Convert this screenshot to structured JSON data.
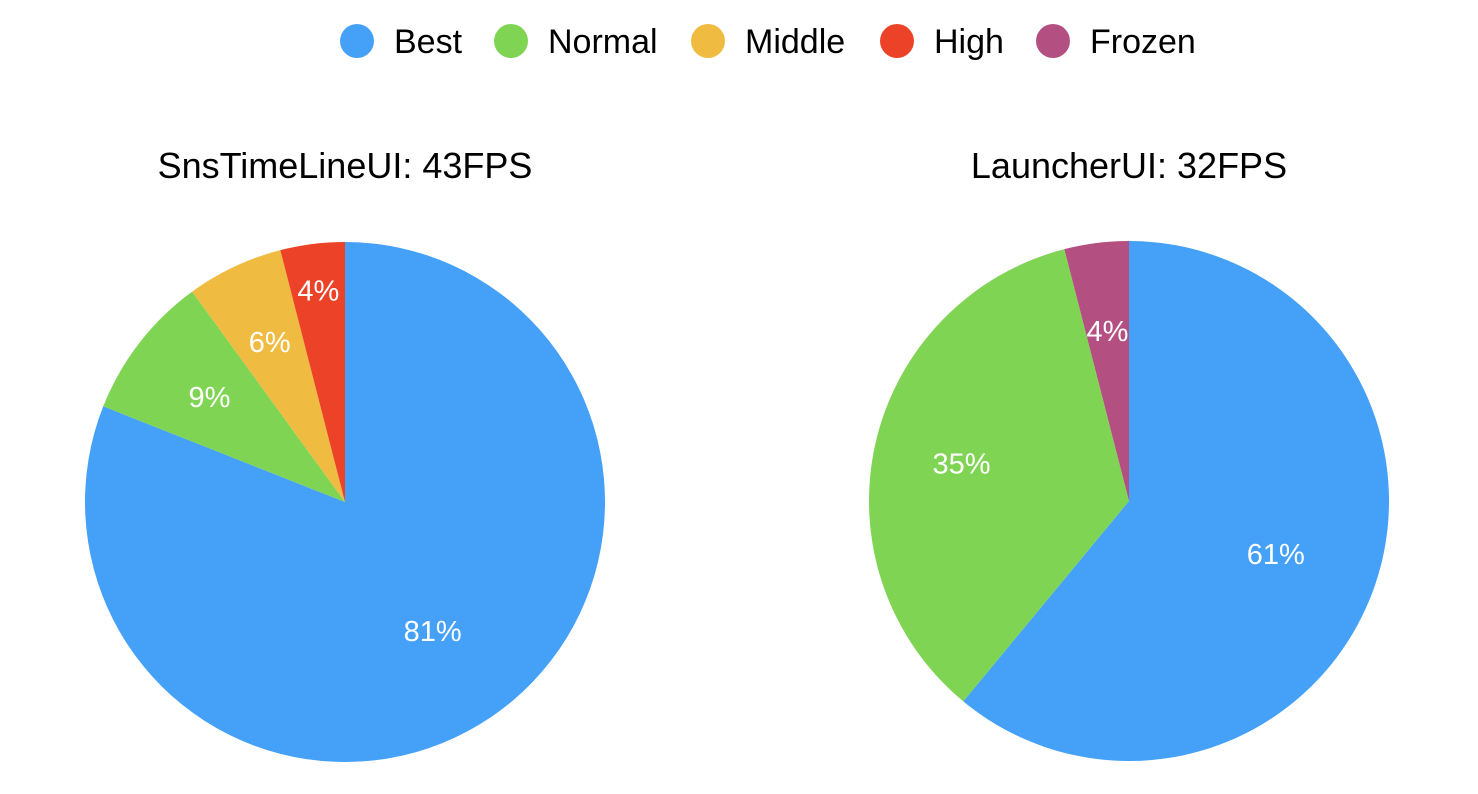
{
  "legend": [
    {
      "label": "Best",
      "color": "#44a1f7"
    },
    {
      "label": "Normal",
      "color": "#80d454"
    },
    {
      "label": "Middle",
      "color": "#f0bb41"
    },
    {
      "label": "High",
      "color": "#ec4227"
    },
    {
      "label": "Frozen",
      "color": "#b45081"
    }
  ],
  "chart_data": [
    {
      "type": "pie",
      "title": "SnsTimeLineUI: 43FPS",
      "slices": [
        {
          "name": "Best",
          "value": 81,
          "label": "81%"
        },
        {
          "name": "Normal",
          "value": 9,
          "label": "9%"
        },
        {
          "name": "Middle",
          "value": 6,
          "label": "6%"
        },
        {
          "name": "High",
          "value": 4,
          "label": "4%"
        }
      ]
    },
    {
      "type": "pie",
      "title": "LauncherUI: 32FPS",
      "slices": [
        {
          "name": "Best",
          "value": 61,
          "label": "61%"
        },
        {
          "name": "Normal",
          "value": 35,
          "label": "35%"
        },
        {
          "name": "Frozen",
          "value": 4,
          "label": "4%"
        }
      ]
    }
  ]
}
